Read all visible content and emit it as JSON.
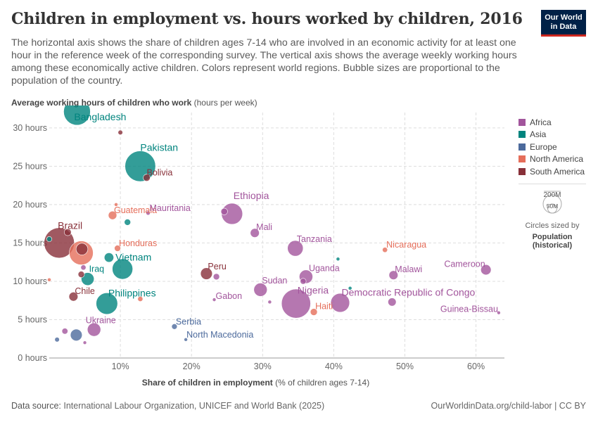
{
  "header": {
    "title": "Children in employment vs. hours worked by children, 2016",
    "subtitle": "The horizontal axis shows the share of children ages 7-14 who are involved in an economic activity for at least one hour in the reference week of the corresponding survey. The vertical axis shows the average weekly working hours among these economically active children. Colors represent world regions. Bubble sizes are proportional to the population of the country.",
    "logo_line1": "Our World",
    "logo_line2": "in Data"
  },
  "footer": {
    "source_label": "Data source:",
    "source_text": "International Labour Organization, UNICEF and World Bank (2025)",
    "url": "OurWorldinData.org/child-labor | CC BY"
  },
  "size_legend": {
    "large_label": "200M",
    "small_label": "50M",
    "caption": "Circles sized by",
    "variable_line1": "Population",
    "variable_line2": "(historical)"
  },
  "colors": {
    "Africa": "#a2559c",
    "Asia": "#00847e",
    "Europe": "#4c6a9c",
    "North America": "#e56e5a",
    "South America": "#883039"
  },
  "chart_data": {
    "type": "scatter",
    "ylabel_bold": "Average working hours of children who work",
    "ylabel_unit": "(hours per week)",
    "xlabel_bold": "Share of children in employment",
    "xlabel_unit": "(% of children ages 7-14)",
    "xlim": [
      0,
      64
    ],
    "ylim": [
      0,
      32
    ],
    "x_ticks": [
      {
        "value": 0,
        "label": ""
      },
      {
        "value": 10,
        "label": "10%"
      },
      {
        "value": 20,
        "label": "20%"
      },
      {
        "value": 30,
        "label": "30%"
      },
      {
        "value": 40,
        "label": "40%"
      },
      {
        "value": 50,
        "label": "50%"
      },
      {
        "value": 60,
        "label": "60%"
      }
    ],
    "y_ticks": [
      {
        "value": 0,
        "label": "0 hours"
      },
      {
        "value": 5,
        "label": "5 hours"
      },
      {
        "value": 10,
        "label": "10 hours"
      },
      {
        "value": 15,
        "label": "15 hours"
      },
      {
        "value": 20,
        "label": "20 hours"
      },
      {
        "value": 25,
        "label": "25 hours"
      },
      {
        "value": 30,
        "label": "30 hours"
      }
    ],
    "grid": true,
    "legend_position": "right",
    "series": [
      "Africa",
      "Asia",
      "Europe",
      "North America",
      "South America"
    ],
    "points": [
      {
        "label": "Bangladesh",
        "region": "Asia",
        "x": 3.9,
        "y": 32.1,
        "pop": 160
      },
      {
        "label": "Pakistan",
        "region": "Asia",
        "x": 12.8,
        "y": 25.0,
        "pop": 210
      },
      {
        "label": "Bolivia",
        "region": "South America",
        "x": 13.7,
        "y": 23.5,
        "pop": 11
      },
      {
        "label": "",
        "region": "South America",
        "x": 10.0,
        "y": 29.4,
        "pop": 5
      },
      {
        "label": "Guatemala",
        "region": "North America",
        "x": 8.9,
        "y": 18.6,
        "pop": 16
      },
      {
        "label": "",
        "region": "North America",
        "x": 9.4,
        "y": 20.0,
        "pop": 3
      },
      {
        "label": "Mauritania",
        "region": "Africa",
        "x": 13.9,
        "y": 18.9,
        "pop": 4
      },
      {
        "label": "",
        "region": "Asia",
        "x": 11.0,
        "y": 17.7,
        "pop": 9
      },
      {
        "label": "Ethiopia",
        "region": "Africa",
        "x": 25.7,
        "y": 18.8,
        "pop": 100
      },
      {
        "label": "",
        "region": "Africa",
        "x": 24.6,
        "y": 19.1,
        "pop": 10
      },
      {
        "label": "Mali",
        "region": "Africa",
        "x": 28.9,
        "y": 16.3,
        "pop": 18
      },
      {
        "label": "Brazil",
        "region": "South America",
        "x": 1.4,
        "y": 15.0,
        "pop": 206
      },
      {
        "label": "",
        "region": "South America",
        "x": 2.6,
        "y": 16.4,
        "pop": 11
      },
      {
        "label": "",
        "region": "Asia",
        "x": 0.0,
        "y": 15.5,
        "pop": 6
      },
      {
        "label": "Honduras",
        "region": "North America",
        "x": 9.6,
        "y": 14.3,
        "pop": 9
      },
      {
        "label": "",
        "region": "North America",
        "x": 4.5,
        "y": 13.7,
        "pop": 128
      },
      {
        "label": "",
        "region": "South America",
        "x": 4.6,
        "y": 14.2,
        "pop": 31
      },
      {
        "label": "Vietnam",
        "region": "Asia",
        "x": 10.3,
        "y": 11.6,
        "pop": 94
      },
      {
        "label": "",
        "region": "Asia",
        "x": 8.4,
        "y": 13.1,
        "pop": 20
      },
      {
        "label": "Iraq",
        "region": "Asia",
        "x": 5.4,
        "y": 10.3,
        "pop": 37
      },
      {
        "label": "",
        "region": "Africa",
        "x": 4.8,
        "y": 11.8,
        "pop": 6
      },
      {
        "label": "",
        "region": "South America",
        "x": 4.5,
        "y": 10.9,
        "pop": 9
      },
      {
        "label": "",
        "region": "North America",
        "x": 0.0,
        "y": 10.2,
        "pop": 3
      },
      {
        "label": "Tanzania",
        "region": "Africa",
        "x": 34.6,
        "y": 14.3,
        "pop": 55
      },
      {
        "label": "Nicaragua",
        "region": "North America",
        "x": 47.2,
        "y": 14.1,
        "pop": 6
      },
      {
        "label": "",
        "region": "Asia",
        "x": 40.6,
        "y": 12.9,
        "pop": 3
      },
      {
        "label": "Peru",
        "region": "South America",
        "x": 22.1,
        "y": 11.0,
        "pop": 31
      },
      {
        "label": "",
        "region": "Africa",
        "x": 23.5,
        "y": 10.6,
        "pop": 9
      },
      {
        "label": "Uganda",
        "region": "Africa",
        "x": 36.1,
        "y": 10.6,
        "pop": 41
      },
      {
        "label": "",
        "region": "Africa",
        "x": 35.7,
        "y": 10.0,
        "pop": 8
      },
      {
        "label": "Malawi",
        "region": "Africa",
        "x": 48.4,
        "y": 10.8,
        "pop": 18
      },
      {
        "label": "Cameroon",
        "region": "Africa",
        "x": 61.4,
        "y": 11.5,
        "pop": 24
      },
      {
        "label": "Sudan",
        "region": "Africa",
        "x": 29.7,
        "y": 8.9,
        "pop": 40
      },
      {
        "label": "Nigeria",
        "region": "Africa",
        "x": 34.7,
        "y": 7.1,
        "pop": 190
      },
      {
        "label": "Democratic Republic of Congo",
        "region": "Africa",
        "x": 40.9,
        "y": 7.2,
        "pop": 80
      },
      {
        "label": "",
        "region": "Asia",
        "x": 42.3,
        "y": 9.1,
        "pop": 3
      },
      {
        "label": "",
        "region": "Africa",
        "x": 48.2,
        "y": 7.3,
        "pop": 15
      },
      {
        "label": "Haiti",
        "region": "North America",
        "x": 37.2,
        "y": 6.0,
        "pop": 11
      },
      {
        "label": "Gabon",
        "region": "Africa",
        "x": 23.2,
        "y": 7.6,
        "pop": 2
      },
      {
        "label": "",
        "region": "Africa",
        "x": 31.0,
        "y": 7.3,
        "pop": 3
      },
      {
        "label": "Guinea-Bissau",
        "region": "Africa",
        "x": 63.2,
        "y": 5.9,
        "pop": 2
      },
      {
        "label": "Chile",
        "region": "South America",
        "x": 3.4,
        "y": 8.0,
        "pop": 18
      },
      {
        "label": "Philippines",
        "region": "Asia",
        "x": 8.1,
        "y": 7.1,
        "pop": 104
      },
      {
        "label": "",
        "region": "North America",
        "x": 12.8,
        "y": 7.7,
        "pop": 6
      },
      {
        "label": "Ukraine",
        "region": "Africa",
        "x": 6.3,
        "y": 3.7,
        "pop": 40
      },
      {
        "label": "",
        "region": "Africa",
        "x": 2.2,
        "y": 3.5,
        "pop": 8
      },
      {
        "label": "",
        "region": "Europe",
        "x": 3.8,
        "y": 3.0,
        "pop": 31
      },
      {
        "label": "",
        "region": "Europe",
        "x": 1.1,
        "y": 2.4,
        "pop": 5
      },
      {
        "label": "",
        "region": "Africa",
        "x": 5.0,
        "y": 2.0,
        "pop": 2
      },
      {
        "label": "Serbia",
        "region": "Europe",
        "x": 17.6,
        "y": 4.1,
        "pop": 7
      },
      {
        "label": "North Macedonia",
        "region": "Europe",
        "x": 19.2,
        "y": 2.4,
        "pop": 2
      }
    ]
  }
}
